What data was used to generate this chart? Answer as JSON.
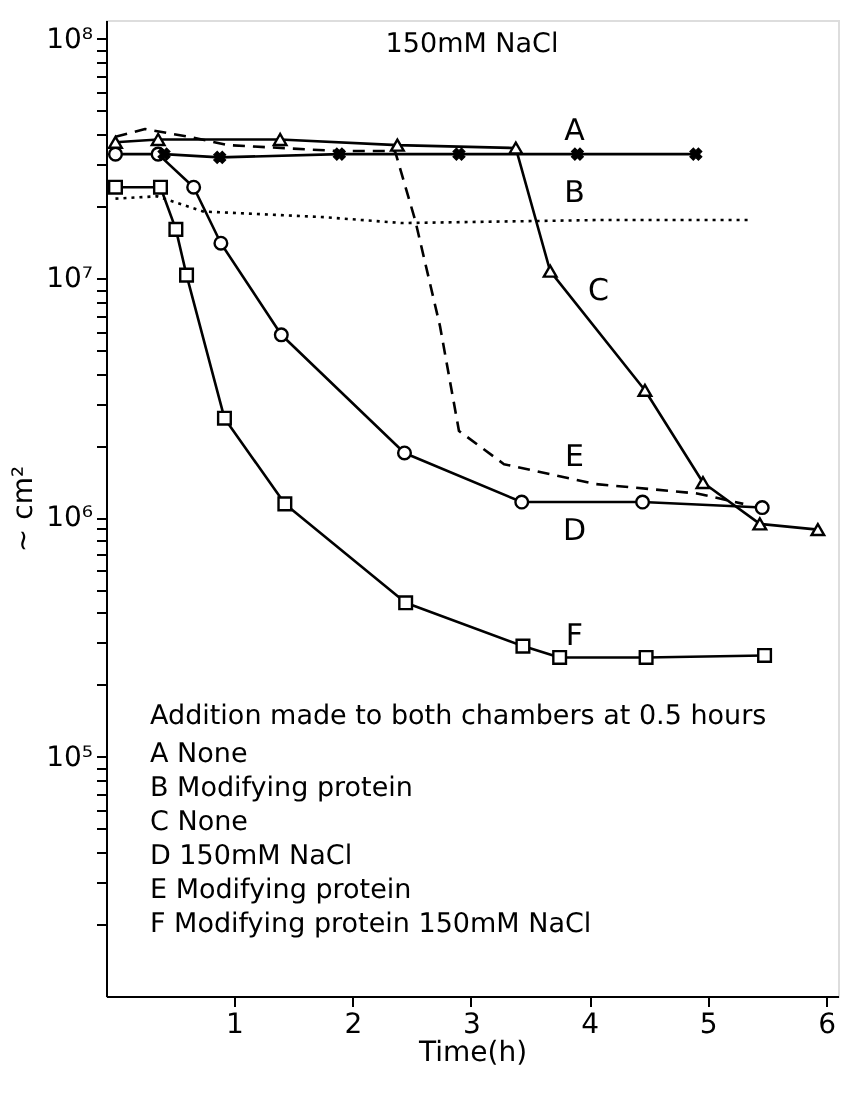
{
  "chart_data": {
    "type": "line",
    "xlabel": "Time(h)",
    "ylabel": "~ cm²",
    "xlim": [
      -0.08,
      6.1
    ],
    "xticks": [
      1,
      2,
      3,
      4,
      5,
      6
    ],
    "ylim": [
      10000,
      120000000
    ],
    "log": "y",
    "yticks": [
      {
        "value": 100000,
        "label": "10⁵"
      },
      {
        "value": 1000000,
        "label": "10⁶"
      },
      {
        "value": 10000000,
        "label": "10⁷"
      },
      {
        "value": 100000000,
        "label": "10⁸"
      },
      {
        "value": 20000,
        "label": null
      },
      {
        "value": 30000,
        "label": null
      },
      {
        "value": 40000,
        "label": null
      },
      {
        "value": 50000,
        "label": null
      },
      {
        "value": 60000,
        "label": null
      },
      {
        "value": 70000,
        "label": null
      },
      {
        "value": 80000,
        "label": null
      },
      {
        "value": 90000,
        "label": null
      },
      {
        "value": 200000,
        "label": null
      },
      {
        "value": 300000,
        "label": null
      },
      {
        "value": 400000,
        "label": null
      },
      {
        "value": 500000,
        "label": null
      },
      {
        "value": 600000,
        "label": null
      },
      {
        "value": 700000,
        "label": null
      },
      {
        "value": 800000,
        "label": null
      },
      {
        "value": 900000,
        "label": null
      },
      {
        "value": 2000000,
        "label": null
      },
      {
        "value": 3000000,
        "label": null
      },
      {
        "value": 4000000,
        "label": null
      },
      {
        "value": 5000000,
        "label": null
      },
      {
        "value": 6000000,
        "label": null
      },
      {
        "value": 7000000,
        "label": null
      },
      {
        "value": 8000000,
        "label": null
      },
      {
        "value": 9000000,
        "label": null
      },
      {
        "value": 20000000,
        "label": null
      },
      {
        "value": 30000000,
        "label": null
      },
      {
        "value": 40000000,
        "label": null
      },
      {
        "value": 50000000,
        "label": null
      },
      {
        "value": 60000000,
        "label": null
      },
      {
        "value": 70000000,
        "label": null
      },
      {
        "value": 80000000,
        "label": null
      },
      {
        "value": 90000000,
        "label": null
      }
    ],
    "grid": false,
    "series": [
      {
        "name": "A",
        "color": "#000000",
        "marker": "cross",
        "line_style": "solid",
        "x": [
          0.41,
          0.88,
          1.89,
          2.9,
          3.9,
          4.9
        ],
        "values": [
          33000000,
          32000000,
          33000000,
          33000000,
          33000000,
          33000000
        ]
      },
      {
        "name": "B",
        "color": "#000000",
        "marker": "none",
        "line_style": "dotted",
        "x": [
          0,
          0.35,
          0.74,
          1.76,
          2.42,
          4.05,
          5.35
        ],
        "values": [
          21500000,
          22000000,
          19000000,
          18000000,
          17000000,
          17500000,
          17500000
        ]
      },
      {
        "name": "C",
        "color": "#000000",
        "marker": "triangle",
        "line_style": "solid",
        "x": [
          0,
          0.36,
          1.39,
          2.38,
          3.38,
          3.67,
          4.47,
          4.96,
          5.44,
          5.93
        ],
        "values": [
          37000000,
          38000000,
          38000000,
          36000000,
          35000000,
          10700000,
          3400000,
          1400000,
          940000,
          890000
        ]
      },
      {
        "name": "D",
        "color": "#000000",
        "marker": "circle",
        "line_style": "solid",
        "x": [
          0,
          0.36,
          0.66,
          0.89,
          1.4,
          2.44,
          3.43,
          4.45,
          5.46
        ],
        "values": [
          33000000,
          33000000,
          24000000,
          14000000,
          5800000,
          1860000,
          1160000,
          1160000,
          1100000
        ]
      },
      {
        "name": "E",
        "color": "#000000",
        "marker": "none",
        "line_style": "dashed",
        "x": [
          0,
          0.25,
          0.62,
          0.95,
          1.88,
          2.36,
          2.53,
          2.74,
          2.9,
          3.28,
          4.05,
          4.91,
          5.3
        ],
        "values": [
          39000000,
          42000000,
          39000000,
          36000000,
          34000000,
          34000000,
          17500000,
          6300000,
          2300000,
          1670000,
          1380000,
          1260000,
          1140000
        ]
      },
      {
        "name": "F",
        "color": "#000000",
        "marker": "square",
        "line_style": "solid",
        "x": [
          0,
          0.38,
          0.51,
          0.6,
          0.92,
          1.43,
          2.45,
          3.44,
          3.75,
          4.48,
          5.48
        ],
        "values": [
          24000000,
          24000000,
          16000000,
          10300000,
          2600000,
          1140000,
          440000,
          290000,
          260000,
          260000,
          265000
        ]
      }
    ],
    "annotations": [
      "150mM NaCl",
      "Addition made to both chambers at 0.5 hours",
      "A   None",
      "B   Modifying protein",
      "C   None",
      "D   150mM NaCl",
      "E   Modifying protein",
      "F   Modifying protein  150mM  NaCl"
    ]
  }
}
